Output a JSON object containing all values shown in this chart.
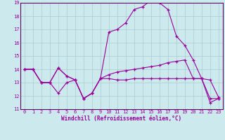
{
  "xlabel": "Windchill (Refroidissement éolien,°C)",
  "xlim": [
    -0.5,
    23.5
  ],
  "ylim": [
    11,
    19
  ],
  "xticks": [
    0,
    1,
    2,
    3,
    4,
    5,
    6,
    7,
    8,
    9,
    10,
    11,
    12,
    13,
    14,
    15,
    16,
    17,
    18,
    19,
    20,
    21,
    22,
    23
  ],
  "yticks": [
    11,
    12,
    13,
    14,
    15,
    16,
    17,
    18,
    19
  ],
  "bg_color": "#cce9ee",
  "grid_color": "#aacccc",
  "line_color": "#990099",
  "spine_color": "#660066",
  "marker": "+",
  "line1_x": [
    0,
    1,
    2,
    3,
    4,
    5,
    6,
    7,
    8,
    9,
    10,
    11,
    12,
    13,
    14,
    15,
    16,
    17,
    18,
    19,
    20,
    21,
    22,
    23
  ],
  "line1_y": [
    14.0,
    14.0,
    13.0,
    13.0,
    14.1,
    13.5,
    13.2,
    11.8,
    12.2,
    13.3,
    13.3,
    13.2,
    13.2,
    13.3,
    13.3,
    13.3,
    13.3,
    13.3,
    13.3,
    13.3,
    13.3,
    13.3,
    11.8,
    11.8
  ],
  "line2_x": [
    0,
    1,
    2,
    3,
    4,
    5,
    6,
    7,
    8,
    9,
    10,
    11,
    12,
    13,
    14,
    15,
    16,
    17,
    18,
    19,
    20,
    21,
    22,
    23
  ],
  "line2_y": [
    14.0,
    14.0,
    13.0,
    13.0,
    12.2,
    13.0,
    13.2,
    11.8,
    12.2,
    13.3,
    13.6,
    13.8,
    13.9,
    14.0,
    14.1,
    14.2,
    14.3,
    14.5,
    14.6,
    14.7,
    13.3,
    13.3,
    11.5,
    11.8
  ],
  "line3_x": [
    0,
    1,
    2,
    3,
    4,
    5,
    6,
    7,
    8,
    9,
    10,
    11,
    12,
    13,
    14,
    15,
    16,
    17,
    18,
    19,
    20,
    21,
    22,
    23
  ],
  "line3_y": [
    14.0,
    14.0,
    13.0,
    13.0,
    14.1,
    13.5,
    13.2,
    11.8,
    12.2,
    13.3,
    16.8,
    17.0,
    17.5,
    18.5,
    18.7,
    19.2,
    19.0,
    18.5,
    16.5,
    15.8,
    14.7,
    13.3,
    13.2,
    11.9
  ],
  "label_fontsize": 5.5,
  "tick_fontsize": 5.0,
  "linewidth": 0.8,
  "markersize": 3.0
}
